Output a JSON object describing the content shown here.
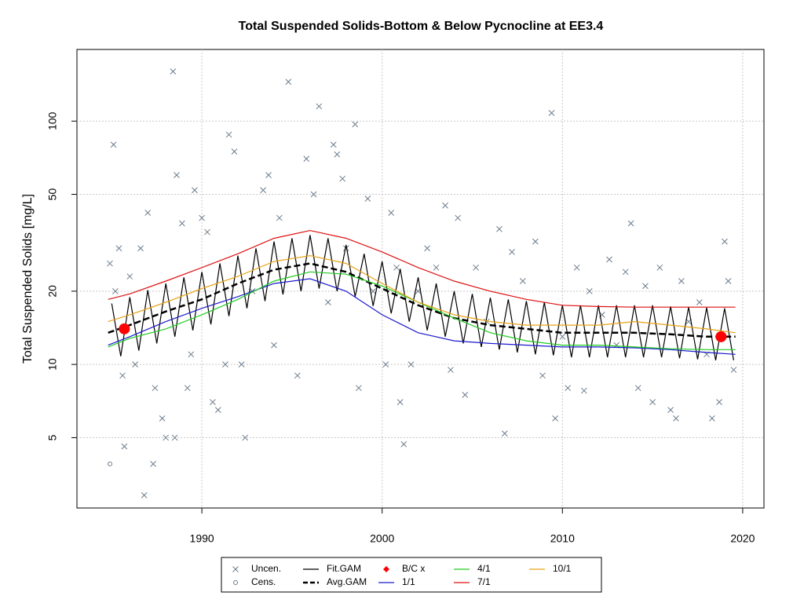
{
  "chart_data": {
    "type": "scatter",
    "title": "Total Suspended Solids-Bottom & Below Pycnocline at EE3.4",
    "y_label": "Total Suspended Solids [mg/L]",
    "log_y": true,
    "grid": true,
    "xlim": [
      1983.07,
      2021.18
    ],
    "xticks": [
      1990,
      2000,
      2010,
      2020
    ],
    "ylim": [
      2.57,
      197
    ],
    "yticks": [
      5,
      10,
      20,
      50,
      100
    ],
    "series": [
      {
        "name": "Uncen.",
        "mark": "x",
        "color": "#6b7b8c",
        "x": [
          1984.9,
          1985.1,
          1985.2,
          1985.4,
          1985.6,
          1985.7,
          1986,
          1986.3,
          1986.6,
          1986.8,
          1987,
          1987.3,
          1987.4,
          1987.8,
          1988,
          1988.4,
          1988.5,
          1988.6,
          1988.9,
          1989.2,
          1989.4,
          1989.6,
          1990,
          1990.3,
          1990.6,
          1990.9,
          1991.3,
          1991.5,
          1991.8,
          1992.2,
          1992.4,
          1992.8,
          1993.4,
          1993.7,
          1994,
          1994.3,
          1994.8,
          1995.3,
          1995.8,
          1996.2,
          1996.5,
          1997,
          1997.3,
          1997.5,
          1997.8,
          1998,
          1998.5,
          1998.7,
          1999.2,
          1999.5,
          2000.2,
          2000.5,
          2000.8,
          2001,
          2001.2,
          2001.6,
          2002,
          2002.5,
          2003,
          2003.5,
          2003.8,
          2004.2,
          2004.6,
          2005.2,
          2005.8,
          2006.5,
          2006.8,
          2007.2,
          2007.8,
          2008.5,
          2008.9,
          2009.4,
          2009.6,
          2010,
          2010.3,
          2010.8,
          2011.2,
          2011.5,
          2012.2,
          2012.6,
          2013,
          2013.5,
          2013.8,
          2014.2,
          2014.6,
          2015,
          2015.4,
          2016,
          2016.3,
          2016.6,
          2017,
          2017.6,
          2018,
          2018.3,
          2018.7,
          2019,
          2019.2,
          2019.5
        ],
        "values": [
          26,
          80,
          20,
          30,
          9,
          4.6,
          23,
          10,
          30,
          2.9,
          42,
          3.9,
          8,
          6,
          5,
          160,
          5,
          60,
          38,
          8,
          11,
          52,
          40,
          35,
          7,
          6.5,
          10,
          88,
          75,
          10,
          5,
          20,
          52,
          60,
          12,
          40,
          145,
          9,
          70,
          50,
          115,
          18,
          80,
          73,
          58,
          30,
          97,
          8,
          48,
          20,
          10,
          42,
          25,
          7,
          4.7,
          10,
          20,
          30,
          25,
          45,
          9.5,
          40,
          7.5,
          25,
          15,
          36,
          5.2,
          29,
          22,
          32,
          9,
          108,
          6,
          13,
          8,
          25,
          7.8,
          20,
          16,
          27,
          12,
          24,
          38,
          8,
          21,
          7,
          25,
          6.5,
          6,
          22,
          15,
          18,
          11,
          6,
          7,
          32,
          22,
          9.5
        ]
      },
      {
        "name": "Cens.",
        "mark": "o",
        "color": "#6b7b8c",
        "x": [
          1984.9
        ],
        "values": [
          3.9
        ]
      },
      {
        "name": "Fit.GAM",
        "mark": "line",
        "color": "#000000",
        "x": [
          1985,
          1985.5,
          1986,
          1986.5,
          1987,
          1987.5,
          1988,
          1988.5,
          1989,
          1989.5,
          1990,
          1990.5,
          1991,
          1991.5,
          1992,
          1992.5,
          1993,
          1993.5,
          1994,
          1994.5,
          1995,
          1995.5,
          1996,
          1996.5,
          1997,
          1997.5,
          1998,
          1998.5,
          1999,
          1999.5,
          2000,
          2000.5,
          2001,
          2001.5,
          2002,
          2002.5,
          2003,
          2003.5,
          2004,
          2004.5,
          2005,
          2005.5,
          2006,
          2006.5,
          2007,
          2007.5,
          2008,
          2008.5,
          2009,
          2009.5,
          2010,
          2010.5,
          2011,
          2011.5,
          2012,
          2012.5,
          2013,
          2013.5,
          2014,
          2014.5,
          2015,
          2015.5,
          2016,
          2016.5,
          2017,
          2017.5,
          2018,
          2018.5,
          2019,
          2019.5
        ],
        "values": [
          17.8,
          10.8,
          18.9,
          11.4,
          20.2,
          12.2,
          21.5,
          13,
          22.8,
          13.8,
          24,
          14.6,
          26,
          15.8,
          28,
          17,
          30,
          18.2,
          32,
          19.4,
          33,
          20,
          34,
          20.5,
          33,
          20,
          31,
          19,
          28.5,
          17.4,
          26.5,
          16.2,
          24.7,
          15,
          22.8,
          13.8,
          21.5,
          13,
          20,
          12.2,
          19.5,
          11.8,
          18.8,
          11.5,
          18.5,
          11.2,
          18.2,
          11,
          18,
          10.9,
          17.5,
          10.7,
          17.5,
          10.7,
          17.5,
          10.7,
          17.5,
          10.7,
          17.5,
          10.7,
          17.5,
          10.7,
          17.3,
          10.6,
          17.2,
          10.5,
          17.1,
          10.4,
          17,
          10.4
        ]
      },
      {
        "name": "Avg.GAM",
        "mark": "dashed",
        "color": "#000000",
        "x": [
          1984.8,
          1986,
          1988,
          1990,
          1992,
          1994,
          1996,
          1998,
          2000,
          2002,
          2004,
          2006,
          2008,
          2010,
          2012,
          2014,
          2016,
          2018,
          2019.6
        ],
        "values": [
          13.5,
          14.5,
          16.5,
          18.5,
          21.5,
          24.5,
          26,
          24,
          20.5,
          17.5,
          15.5,
          14.5,
          14,
          13.5,
          13.5,
          13.5,
          13.3,
          13,
          13
        ]
      },
      {
        "name": "B/C x",
        "mark": "dot",
        "color": "#ff0000",
        "x": [
          1985.7,
          2018.8
        ],
        "values": [
          14,
          13
        ]
      },
      {
        "name": "1/1",
        "mark": "line",
        "color": "#1a1acc",
        "x": [
          1984.8,
          1986,
          1988,
          1990,
          1992,
          1994,
          1996,
          1998,
          2000,
          2002,
          2004,
          2006,
          2008,
          2010,
          2012,
          2014,
          2016,
          2018,
          2019.6
        ],
        "values": [
          12,
          13,
          15,
          17,
          19,
          21.5,
          22.5,
          20,
          16,
          13.5,
          12.5,
          12.2,
          12,
          11.8,
          11.8,
          11.7,
          11.5,
          11.2,
          11
        ]
      },
      {
        "name": "4/1",
        "mark": "line",
        "color": "#22cc22",
        "x": [
          1984.8,
          1986,
          1988,
          1990,
          1992,
          1994,
          1996,
          1998,
          2000,
          2002,
          2004,
          2006,
          2008,
          2010,
          2012,
          2014,
          2016,
          2018,
          2019.6
        ],
        "values": [
          11.8,
          12.8,
          14,
          16,
          18.5,
          22,
          24,
          23.5,
          21,
          18,
          15.5,
          13.5,
          12.5,
          12,
          12,
          11.8,
          11.6,
          11.5,
          11.5
        ]
      },
      {
        "name": "7/1",
        "mark": "line",
        "color": "#dd1111",
        "x": [
          1984.8,
          1986,
          1988,
          1990,
          1992,
          1994,
          1996,
          1998,
          2000,
          2002,
          2004,
          2006,
          2008,
          2010,
          2012,
          2014,
          2016,
          2018,
          2019.6
        ],
        "values": [
          18.5,
          19.5,
          22,
          25,
          28.5,
          33,
          35.5,
          33,
          29,
          25,
          22,
          20,
          18.5,
          17.5,
          17.3,
          17.2,
          17.2,
          17.2,
          17.2
        ]
      },
      {
        "name": "10/1",
        "mark": "line",
        "color": "#e8a317",
        "x": [
          1984.8,
          1986,
          1988,
          1990,
          1992,
          1994,
          1996,
          1998,
          2000,
          2002,
          2004,
          2006,
          2008,
          2010,
          2012,
          2014,
          2016,
          2018,
          2019.6
        ],
        "values": [
          15,
          16,
          18,
          20.5,
          23,
          26.5,
          28,
          26,
          21.5,
          18,
          16,
          15,
          14.5,
          14.5,
          14.5,
          15,
          14.5,
          14,
          13.5
        ]
      }
    ]
  }
}
